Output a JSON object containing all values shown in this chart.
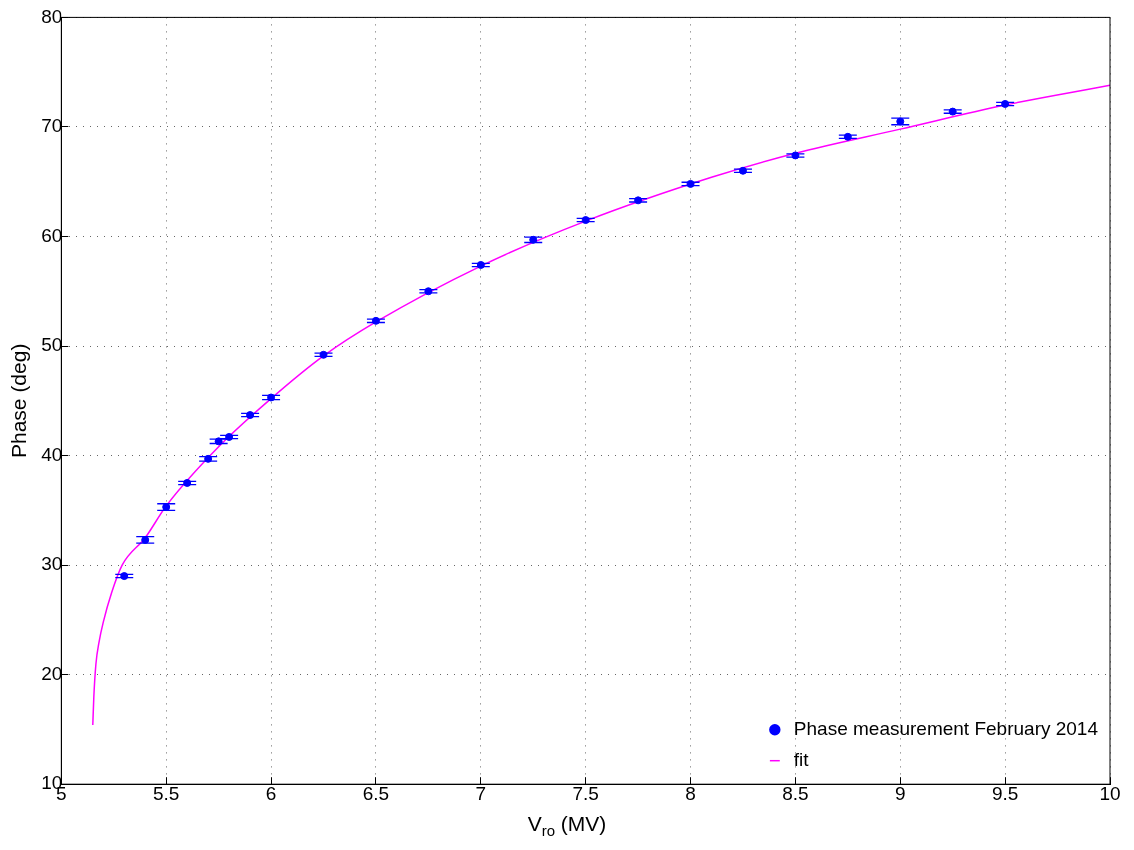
{
  "chart_data": {
    "type": "scatter",
    "xlabel": "V$_{ro}$ (MV)",
    "ylabel": "Phase (deg)",
    "xlim": [
      5,
      10
    ],
    "xticks": [
      5,
      5.5,
      6,
      6.5,
      7,
      7.5,
      8,
      8.5,
      9,
      9.5,
      10
    ],
    "ylim": [
      10,
      80
    ],
    "yticks": [
      10,
      20,
      30,
      40,
      50,
      60,
      70,
      80
    ],
    "grid": true,
    "legend": "bottom right",
    "series": [
      {
        "name": "Phase measurement February 2014",
        "type": "scatter",
        "color": "#0000ff",
        "marker": "circle",
        "x": [
          5.3,
          5.4,
          5.5,
          5.6,
          5.7,
          5.75,
          5.8,
          5.9,
          6,
          6.25,
          6.5,
          6.75,
          7,
          7.25,
          7.5,
          7.75,
          8,
          8.25,
          8.5,
          8.75,
          9,
          9.25,
          9.5
        ],
        "values": [
          29.0,
          32.3,
          35.3,
          37.5,
          39.7,
          41.3,
          41.7,
          43.7,
          45.3,
          49.2,
          52.3,
          55.0,
          57.4,
          59.7,
          61.5,
          63.3,
          64.8,
          66.0,
          67.4,
          69.1,
          70.5,
          71.4,
          72.1
        ],
        "errors": [
          0.15,
          0.3,
          0.3,
          0.15,
          0.2,
          0.2,
          0.15,
          0.15,
          0.2,
          0.15,
          0.15,
          0.15,
          0.15,
          0.25,
          0.15,
          0.15,
          0.15,
          0.15,
          0.15,
          0.15,
          0.3,
          0.15,
          0.15
        ]
      },
      {
        "name": "fit",
        "type": "line",
        "color": "#ff00ff",
        "marker": "none",
        "line_style": "solid",
        "x": [
          5.15,
          5.155,
          5.165,
          5.18,
          5.2,
          5.24,
          5.29,
          5.4,
          5.5,
          5.75,
          6,
          6.25,
          6.5,
          7,
          7.5,
          8.1,
          8.5,
          9,
          9.5,
          10
        ],
        "values": [
          15.4,
          18,
          21,
          23,
          24.8,
          27.5,
          30,
          32.5,
          35.4,
          40.8,
          45.2,
          49.1,
          52.2,
          57.3,
          61.4,
          65.4,
          67.6,
          69.8,
          72.0,
          73.8
        ]
      }
    ]
  }
}
